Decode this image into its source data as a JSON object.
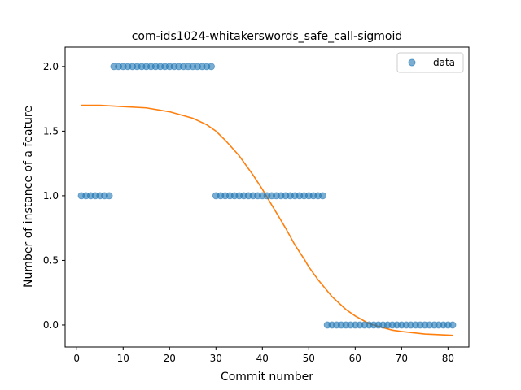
{
  "chart_data": {
    "type": "scatter",
    "title": "com-ids1024-whitakerswords_safe_call-sigmoid",
    "xlabel": "Commit number",
    "ylabel": "Number of instance of a feature",
    "xlim": [
      -2.5,
      84.5
    ],
    "ylim": [
      -0.17,
      2.15
    ],
    "xticks": [
      "0",
      "10",
      "20",
      "30",
      "40",
      "50",
      "60",
      "70",
      "80"
    ],
    "yticks": [
      "0.0",
      "0.5",
      "1.0",
      "1.5",
      "2.0"
    ],
    "legend": {
      "position": "top-right",
      "entries": [
        "data"
      ]
    },
    "series": [
      {
        "name": "data",
        "kind": "scatter",
        "color": "#1f77b4",
        "points": [
          [
            1,
            1
          ],
          [
            2,
            1
          ],
          [
            3,
            1
          ],
          [
            4,
            1
          ],
          [
            5,
            1
          ],
          [
            6,
            1
          ],
          [
            7,
            1
          ],
          [
            8,
            2
          ],
          [
            9,
            2
          ],
          [
            10,
            2
          ],
          [
            11,
            2
          ],
          [
            12,
            2
          ],
          [
            13,
            2
          ],
          [
            14,
            2
          ],
          [
            15,
            2
          ],
          [
            16,
            2
          ],
          [
            17,
            2
          ],
          [
            18,
            2
          ],
          [
            19,
            2
          ],
          [
            20,
            2
          ],
          [
            21,
            2
          ],
          [
            22,
            2
          ],
          [
            23,
            2
          ],
          [
            24,
            2
          ],
          [
            25,
            2
          ],
          [
            26,
            2
          ],
          [
            27,
            2
          ],
          [
            28,
            2
          ],
          [
            29,
            2
          ],
          [
            30,
            1
          ],
          [
            31,
            1
          ],
          [
            32,
            1
          ],
          [
            33,
            1
          ],
          [
            34,
            1
          ],
          [
            35,
            1
          ],
          [
            36,
            1
          ],
          [
            37,
            1
          ],
          [
            38,
            1
          ],
          [
            39,
            1
          ],
          [
            40,
            1
          ],
          [
            41,
            1
          ],
          [
            42,
            1
          ],
          [
            43,
            1
          ],
          [
            44,
            1
          ],
          [
            45,
            1
          ],
          [
            46,
            1
          ],
          [
            47,
            1
          ],
          [
            48,
            1
          ],
          [
            49,
            1
          ],
          [
            50,
            1
          ],
          [
            51,
            1
          ],
          [
            52,
            1
          ],
          [
            53,
            1
          ],
          [
            54,
            0
          ],
          [
            55,
            0
          ],
          [
            56,
            0
          ],
          [
            57,
            0
          ],
          [
            58,
            0
          ],
          [
            59,
            0
          ],
          [
            60,
            0
          ],
          [
            61,
            0
          ],
          [
            62,
            0
          ],
          [
            63,
            0
          ],
          [
            64,
            0
          ],
          [
            65,
            0
          ],
          [
            66,
            0
          ],
          [
            67,
            0
          ],
          [
            68,
            0
          ],
          [
            69,
            0
          ],
          [
            70,
            0
          ],
          [
            71,
            0
          ],
          [
            72,
            0
          ],
          [
            73,
            0
          ],
          [
            74,
            0
          ],
          [
            75,
            0
          ],
          [
            76,
            0
          ],
          [
            77,
            0
          ],
          [
            78,
            0
          ],
          [
            79,
            0
          ],
          [
            80,
            0
          ],
          [
            81,
            0
          ]
        ]
      },
      {
        "kind": "line",
        "color": "#ff7f0e",
        "points": [
          [
            1,
            1.7
          ],
          [
            5,
            1.7
          ],
          [
            10,
            1.69
          ],
          [
            15,
            1.68
          ],
          [
            20,
            1.65
          ],
          [
            25,
            1.6
          ],
          [
            28,
            1.55
          ],
          [
            30,
            1.5
          ],
          [
            32,
            1.43
          ],
          [
            35,
            1.31
          ],
          [
            38,
            1.16
          ],
          [
            40,
            1.05
          ],
          [
            42,
            0.93
          ],
          [
            44,
            0.81
          ],
          [
            45,
            0.75
          ],
          [
            47,
            0.62
          ],
          [
            49,
            0.51
          ],
          [
            50,
            0.45
          ],
          [
            52,
            0.35
          ],
          [
            55,
            0.22
          ],
          [
            58,
            0.12
          ],
          [
            60,
            0.07
          ],
          [
            63,
            0.01
          ],
          [
            65,
            -0.01
          ],
          [
            68,
            -0.04
          ],
          [
            70,
            -0.05
          ],
          [
            75,
            -0.07
          ],
          [
            81,
            -0.08
          ]
        ]
      }
    ]
  }
}
